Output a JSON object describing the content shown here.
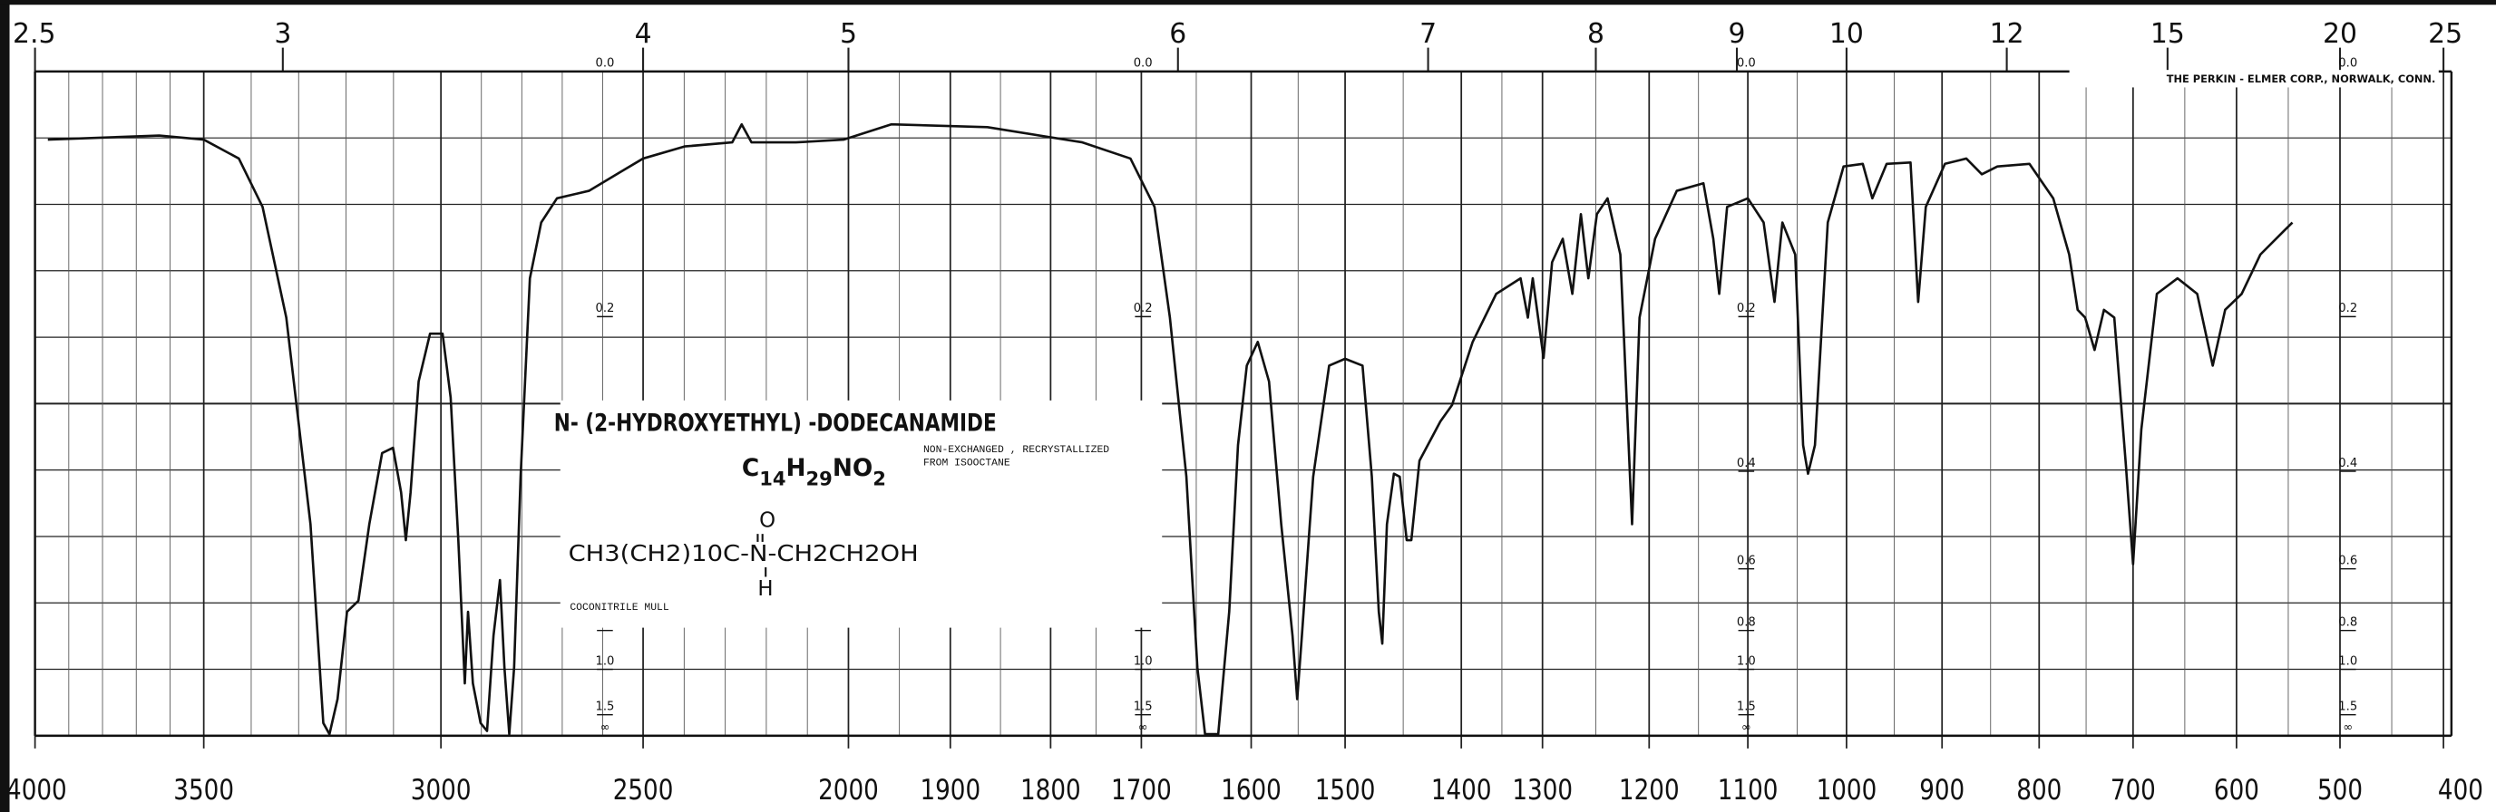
{
  "chart_data": {
    "type": "line",
    "title": "N- (2-HYDROXYETHYL) -DODECANAMIDE",
    "formula": [
      "C",
      "14",
      "H",
      "29",
      "NO",
      "2"
    ],
    "structure": {
      "main": "CH3(CH2)10C-N-CH2CH2OH",
      "above": "O",
      "below": "H"
    },
    "notes": [
      "NON-EXCHANGED , RECRYSTALLIZED",
      "FROM ISOOCTANE"
    ],
    "sample": "COCONITRILE MULL",
    "maker": "THE PERKIN - ELMER CORP., NORWALK, CONN.",
    "color": "#111111",
    "xlim": [
      4000,
      400
    ],
    "xticks": [
      4000,
      3500,
      3000,
      2500,
      2000,
      1900,
      1800,
      1700,
      1600,
      1500,
      1400,
      1300,
      1200,
      1100,
      1000,
      900,
      800,
      700,
      600,
      500,
      400
    ],
    "x2ticks": [
      2.5,
      3,
      4,
      5,
      6,
      7,
      8,
      9,
      10,
      12,
      15,
      20,
      25
    ],
    "ylim": [
      0,
      null
    ],
    "yticks": [
      {
        "value": 0,
        "label": "0.0"
      },
      0.2,
      0.4,
      0.6,
      0.8,
      {
        "value": 1,
        "label": "1.0"
      },
      1.5,
      {
        "value": null,
        "label": "∞"
      }
    ],
    "grid": true,
    "x": [
      3962,
      3632,
      3500,
      3426,
      3376,
      3326,
      3275,
      3248,
      3235,
      3218,
      3198,
      3174,
      3151,
      3124,
      3101,
      3084,
      3074,
      3064,
      3047,
      3023,
      2996,
      2976,
      2957,
      2941,
      2933,
      2921,
      2902,
      2886,
      2870,
      2854,
      2843,
      2831,
      2819,
      2803,
      2780,
      2752,
      2713,
      2634,
      2555,
      2500,
      2399,
      2283,
      2260,
      2236,
      2128,
      2012,
      1958,
      1863,
      1765,
      1712,
      1688,
      1674,
      1659,
      1649,
      1642,
      1630,
      1620,
      1612,
      1604,
      1593,
      1581,
      1568,
      1556,
      1551,
      1546,
      1534,
      1517,
      1500,
      1485,
      1477,
      1471,
      1468,
      1464,
      1458,
      1453,
      1447,
      1443,
      1436,
      1418,
      1408,
      1386,
      1357,
      1327,
      1318,
      1312,
      1299,
      1291,
      1281,
      1272,
      1264,
      1257,
      1249,
      1239,
      1227,
      1216,
      1209,
      1194,
      1172,
      1145,
      1135,
      1129,
      1121,
      1100,
      1084,
      1073,
      1065,
      1052,
      1044,
      1039,
      1032,
      1019,
      1003,
      983,
      973,
      958,
      933,
      925,
      917,
      897,
      875,
      859,
      843,
      810,
      785,
      768,
      759,
      751,
      741,
      731,
      720,
      708,
      700,
      692,
      677,
      657,
      638,
      623,
      611,
      595,
      577,
      554,
      546
    ],
    "values": [
      0.047,
      0.044,
      0.047,
      0.061,
      0.099,
      0.201,
      0.497,
      1.718,
      2.621,
      1.259,
      0.729,
      0.692,
      0.497,
      0.371,
      0.363,
      0.436,
      0.531,
      0.436,
      0.273,
      0.218,
      0.218,
      0.293,
      0.531,
      1.103,
      0.729,
      1.103,
      1.718,
      2.144,
      0.822,
      0.63,
      0.988,
      2.621,
      0.988,
      0.409,
      0.162,
      0.112,
      0.092,
      0.086,
      0.071,
      0.061,
      0.052,
      0.049,
      0.036,
      0.049,
      0.049,
      0.047,
      0.036,
      0.038,
      0.049,
      0.061,
      0.099,
      0.201,
      0.409,
      0.988,
      2.621,
      2.621,
      0.729,
      0.359,
      0.254,
      0.227,
      0.273,
      0.497,
      0.822,
      1.259,
      0.822,
      0.409,
      0.254,
      0.246,
      0.254,
      0.409,
      0.729,
      0.858,
      0.497,
      0.404,
      0.409,
      0.531,
      0.531,
      0.383,
      0.325,
      0.303,
      0.227,
      0.177,
      0.162,
      0.201,
      0.162,
      0.245,
      0.147,
      0.126,
      0.177,
      0.105,
      0.162,
      0.105,
      0.092,
      0.14,
      0.497,
      0.201,
      0.126,
      0.086,
      0.08,
      0.126,
      0.177,
      0.099,
      0.092,
      0.112,
      0.185,
      0.112,
      0.14,
      0.359,
      0.404,
      0.359,
      0.112,
      0.067,
      0.065,
      0.092,
      0.065,
      0.064,
      0.185,
      0.099,
      0.065,
      0.061,
      0.073,
      0.067,
      0.065,
      0.092,
      0.14,
      0.193,
      0.201,
      0.236,
      0.193,
      0.201,
      0.383,
      0.588,
      0.336,
      0.177,
      0.162,
      0.177,
      0.254,
      0.193,
      0.177,
      0.14,
      0.119,
      0.112
    ]
  }
}
